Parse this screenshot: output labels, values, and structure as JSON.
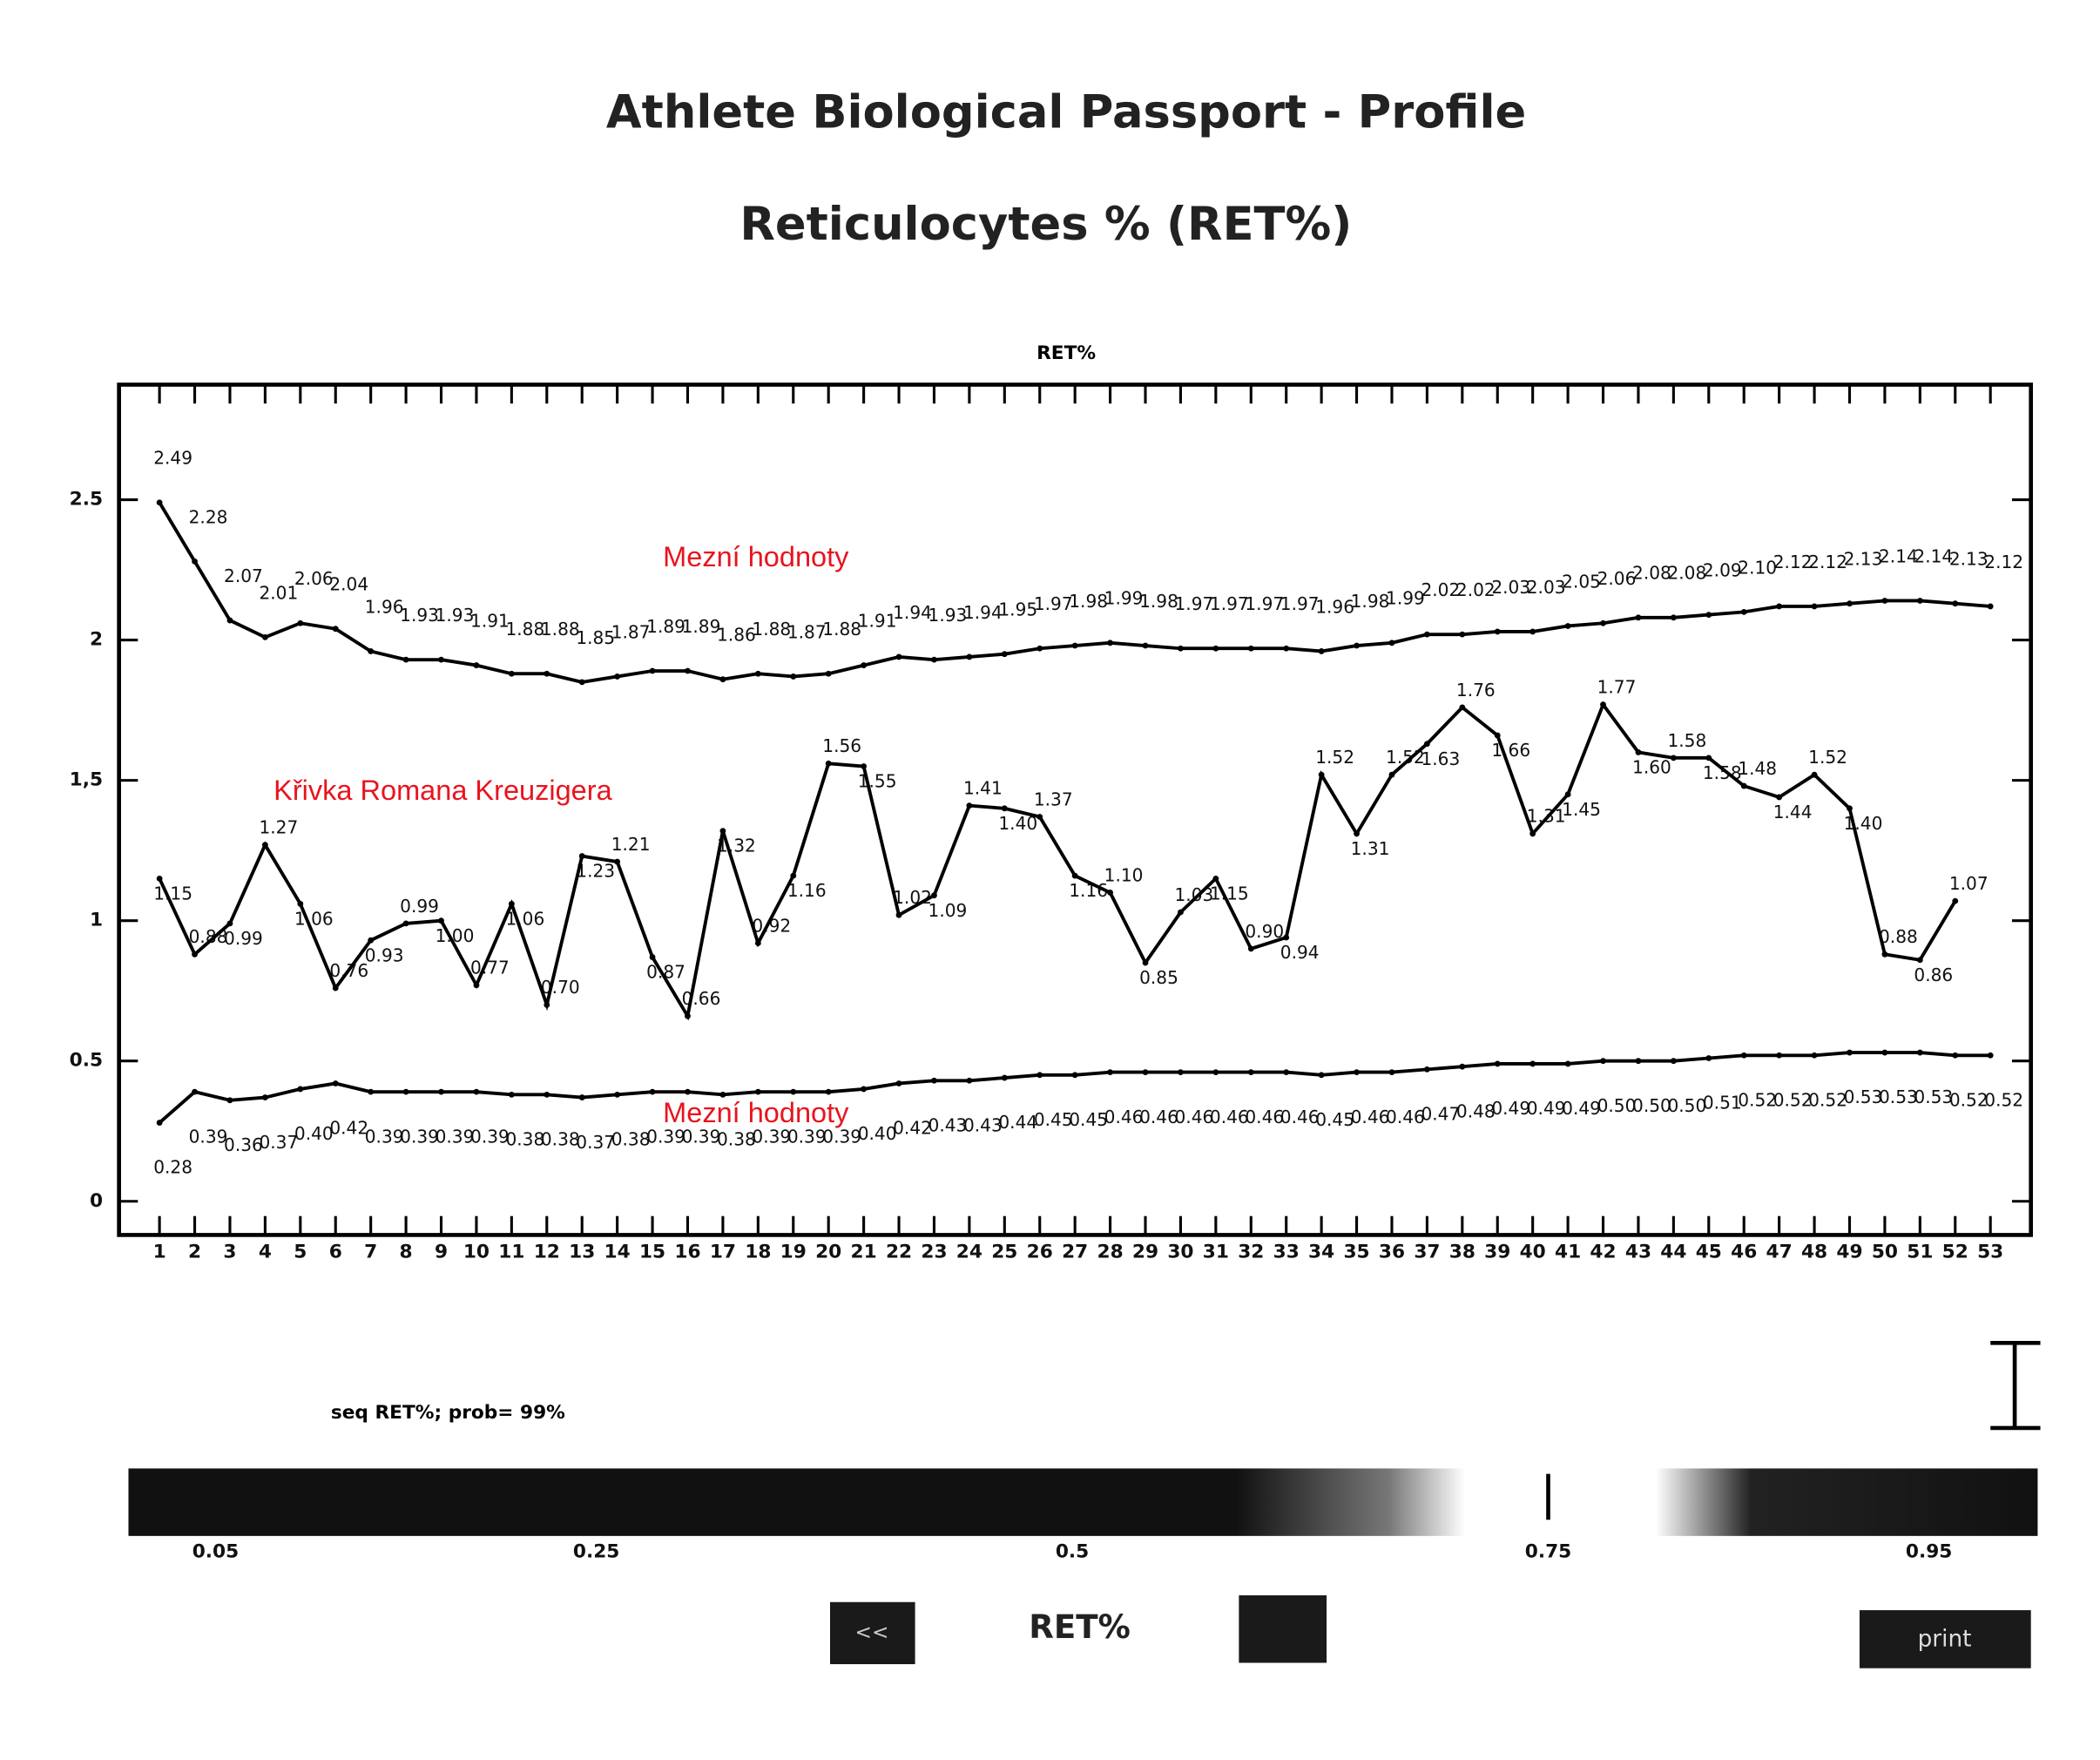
{
  "header": {
    "title": "Athlete Biological Passport - Profile",
    "subtitle": "Reticulocytes % (RET%)"
  },
  "chart_data": {
    "type": "line",
    "title": "RET%",
    "x": [
      1,
      2,
      3,
      4,
      5,
      6,
      7,
      8,
      9,
      10,
      11,
      12,
      13,
      14,
      15,
      16,
      17,
      18,
      19,
      20,
      21,
      22,
      23,
      24,
      25,
      26,
      27,
      28,
      29,
      30,
      31,
      32,
      33,
      34,
      35,
      36,
      37,
      38,
      39,
      40,
      41,
      42,
      43,
      44,
      45,
      46,
      47,
      48,
      49,
      50,
      51,
      52,
      53
    ],
    "xlim": [
      -0.15,
      54.15
    ],
    "xticks": [
      1,
      2,
      3,
      4,
      5,
      6,
      7,
      8,
      9,
      10,
      11,
      12,
      13,
      14,
      15,
      16,
      17,
      18,
      19,
      20,
      21,
      22,
      23,
      24,
      25,
      26,
      27,
      28,
      29,
      30,
      31,
      32,
      33,
      34,
      35,
      36,
      37,
      38,
      39,
      40,
      41,
      42,
      43,
      44,
      45,
      46,
      47,
      48,
      49,
      50,
      51,
      52,
      53
    ],
    "ylim": [
      -0.12,
      2.91
    ],
    "yticks": [
      {
        "value": 0,
        "label": "0"
      },
      {
        "value": 0.5,
        "label": "0.5"
      },
      {
        "value": 1,
        "label": "1"
      },
      {
        "value": 1.5,
        "label": "1,5"
      },
      {
        "value": 2,
        "label": "2"
      },
      {
        "value": 2.5,
        "label": "2.5"
      }
    ],
    "series": [
      {
        "color": "#000000",
        "values": [
          2.49,
          2.28,
          2.07,
          2.01,
          2.06,
          2.04,
          1.96,
          1.93,
          1.93,
          1.91,
          1.88,
          1.88,
          1.85,
          1.87,
          1.89,
          1.89,
          1.86,
          1.88,
          1.87,
          1.88,
          1.91,
          1.94,
          1.93,
          1.94,
          1.95,
          1.97,
          1.98,
          1.99,
          1.98,
          1.97,
          1.97,
          1.97,
          1.97,
          1.96,
          1.98,
          1.99,
          2.02,
          2.02,
          2.03,
          2.03,
          2.05,
          2.06,
          2.08,
          2.08,
          2.09,
          2.1,
          2.12,
          2.12,
          2.13,
          2.14,
          2.14,
          2.13,
          2.12
        ],
        "value_labels": [
          "2.49",
          "2.28",
          "2.07",
          "2.01",
          "2.06",
          "2.04",
          "1.96",
          "1.93",
          "1.93",
          "1.91",
          "1.88",
          "1.88",
          "1.85",
          "1.87",
          "1.89",
          "1.89",
          "1.86",
          "1.88",
          "1.87",
          "1.88",
          "1.91",
          "1.94",
          "1.93",
          "1.94",
          "1.95",
          "1.97",
          "1.98",
          "1.99",
          "1.98",
          "1.97",
          "1.97",
          "1.97",
          "1.97",
          "1.96",
          "1.98",
          "1.99",
          "2.02",
          "2.02",
          "2.03",
          "2.03",
          "2.05",
          "2.06",
          "2.08",
          "2.08",
          "2.09",
          "2.10",
          "2.12",
          "2.12",
          "2.13",
          "2.14",
          "2.14",
          "2.13",
          "2.12"
        ]
      },
      {
        "color": "#000000",
        "values": [
          1.15,
          0.88,
          0.99,
          1.27,
          1.06,
          0.76,
          0.93,
          0.99,
          1,
          0.77,
          1.06,
          0.7,
          1.23,
          1.21,
          0.87,
          0.66,
          1.32,
          0.92,
          1.16,
          1.56,
          1.55,
          1.02,
          1.09,
          1.41,
          1.4,
          1.37,
          1.16,
          1.1,
          0.85,
          1.03,
          1.15,
          0.9,
          0.94,
          1.52,
          1.31,
          1.52,
          1.63,
          1.76,
          1.66,
          1.31,
          1.45,
          1.77,
          1.6,
          1.58,
          1.58,
          1.48,
          1.44,
          1.52,
          1.4,
          0.88,
          0.86,
          1.07,
          null
        ],
        "value_labels": [
          "1.15",
          "0.88",
          "0.99",
          "1.27",
          "1.06",
          "0.76",
          "0.93",
          "0.99",
          "1.00",
          "0.77",
          "1.06",
          "0.70",
          "1.23",
          "1.21",
          "0.87",
          "0.66",
          "1.32",
          "0.92",
          "1.16",
          "1.56",
          "1.55",
          "1.02",
          "1.09",
          "1.41",
          "1.40",
          "1.37",
          "1.16",
          "1.10",
          "0.85",
          "1.03",
          "1.15",
          "0.90",
          "0.94",
          "1.52",
          "1.31",
          "1.52",
          "1.63",
          "1.76",
          "1.66",
          "1.31",
          "1.45",
          "1.77",
          "1.60",
          "1.58",
          "1.58",
          "1.48",
          "1.44",
          "1.52",
          "1.40",
          "0.88",
          "0.86",
          "1.07",
          null
        ]
      },
      {
        "color": "#000000",
        "values": [
          0.28,
          0.39,
          0.36,
          0.37,
          0.4,
          0.42,
          0.39,
          0.39,
          0.39,
          0.39,
          0.38,
          0.38,
          0.37,
          0.38,
          0.39,
          0.39,
          0.38,
          0.39,
          0.39,
          0.39,
          0.4,
          0.42,
          0.43,
          0.43,
          0.44,
          0.45,
          0.45,
          0.46,
          0.46,
          0.46,
          0.46,
          0.46,
          0.46,
          0.45,
          0.46,
          0.46,
          0.47,
          0.48,
          0.49,
          0.49,
          0.49,
          0.5,
          0.5,
          0.5,
          0.51,
          0.52,
          0.52,
          0.52,
          0.53,
          0.53,
          0.53,
          0.52,
          0.52
        ],
        "value_labels": [
          "0.28",
          "0.39",
          "0.36",
          "0.37",
          "0.40",
          "0.42",
          "0.39",
          "0.39",
          "0.39",
          "0.39",
          "0.38",
          "0.38",
          "0.37",
          "0.38",
          "0.39",
          "0.39",
          "0.38",
          "0.39",
          "0.39",
          "0.39",
          "0.40",
          "0.42",
          "0.43",
          "0.43",
          "0.44",
          "0.45",
          "0.45",
          "0.46",
          "0.46",
          "0.46",
          "0.46",
          "0.46",
          "0.46",
          "0.45",
          "0.46",
          "0.46",
          "0.47",
          "0.48",
          "0.49",
          "0.49",
          "0.49",
          "0.50",
          "0.50",
          "0.50",
          "0.51",
          "0.52",
          "0.52",
          "0.52",
          "0.53",
          "0.53",
          "0.53",
          "0.52",
          "0.52"
        ]
      }
    ],
    "annotations": [
      {
        "text": "Mezní hodnoty",
        "color": "#e8141e"
      },
      {
        "text": "Křivka Romana Kreuzigera",
        "color": "#e8141e"
      },
      {
        "text": "Mezní hodnoty",
        "color": "#e8141e"
      }
    ],
    "grid": false
  },
  "probability": {
    "caption": "seq RET%; prob= 99%",
    "xlim": [
      0,
      1
    ],
    "ticks": [
      0.05,
      0.25,
      0.5,
      0.75,
      0.95
    ],
    "marker": 0.75
  },
  "buttons": {
    "back": "<<",
    "label": "RET%",
    "print": "print"
  }
}
